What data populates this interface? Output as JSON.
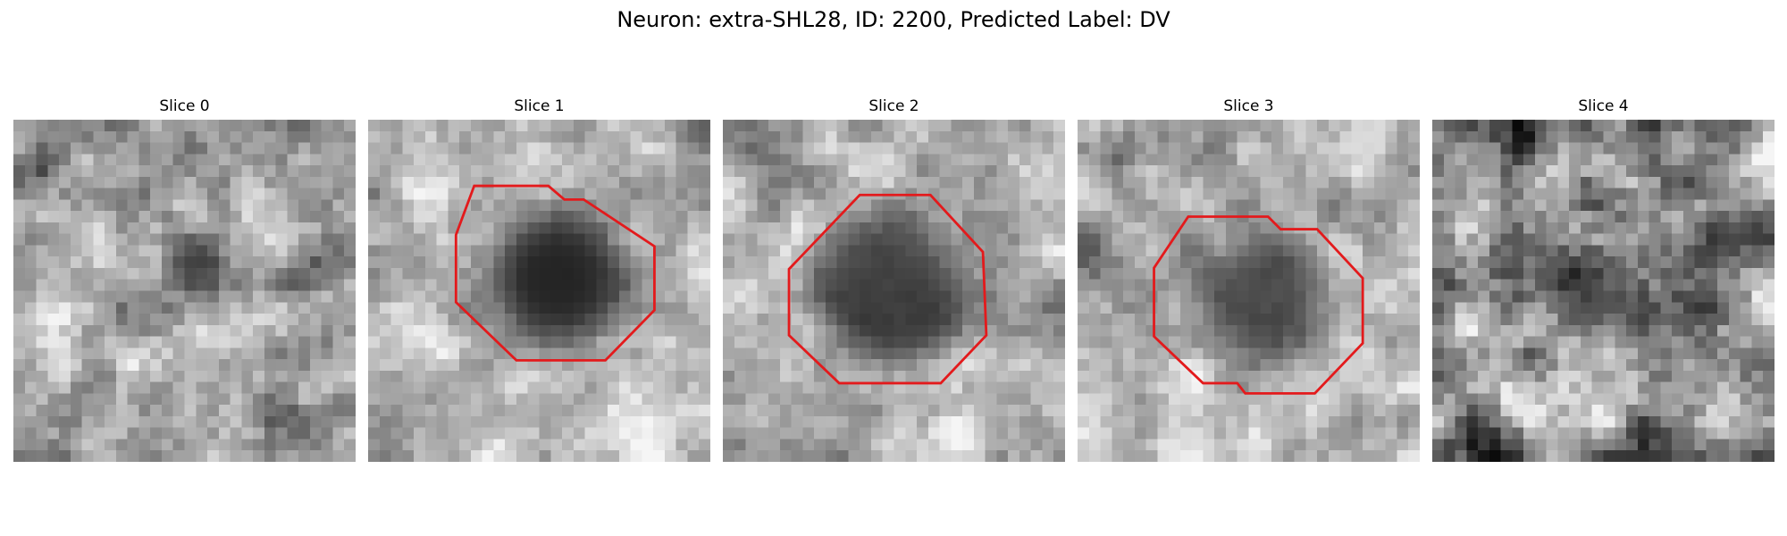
{
  "figure": {
    "title": "Neuron: extra-SHL28, ID: 2200, Predicted Label: DV"
  },
  "panels": [
    {
      "title": "Slice 0",
      "contour": false
    },
    {
      "title": "Slice 1",
      "contour": true
    },
    {
      "title": "Slice 2",
      "contour": true
    },
    {
      "title": "Slice 3",
      "contour": true
    },
    {
      "title": "Slice 4",
      "contour": false
    }
  ],
  "colors": {
    "contour": "#e31a1c",
    "background": "#ffffff"
  }
}
